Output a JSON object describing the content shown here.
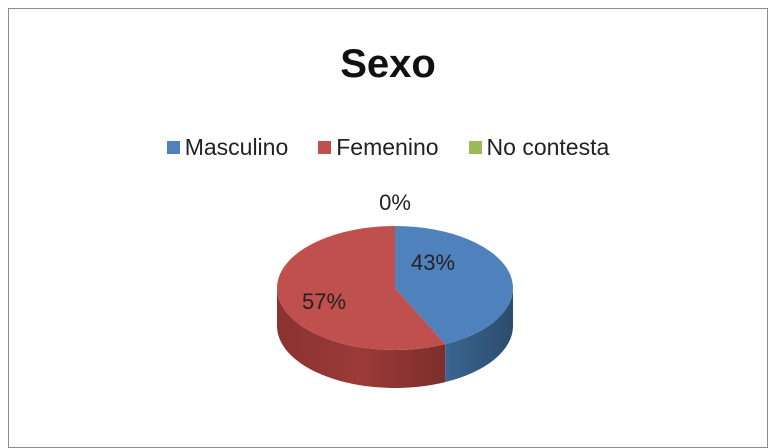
{
  "chart_data": {
    "type": "pie",
    "title": "Sexo",
    "categories": [
      "Masculino",
      "Femenino",
      "No contesta"
    ],
    "values": [
      43,
      57,
      0
    ],
    "labels": [
      "43%",
      "57%",
      "0%"
    ],
    "colors": [
      "#4f81bd",
      "#c0504d",
      "#9bbb59"
    ],
    "legend_position": "top",
    "style": "3d"
  }
}
